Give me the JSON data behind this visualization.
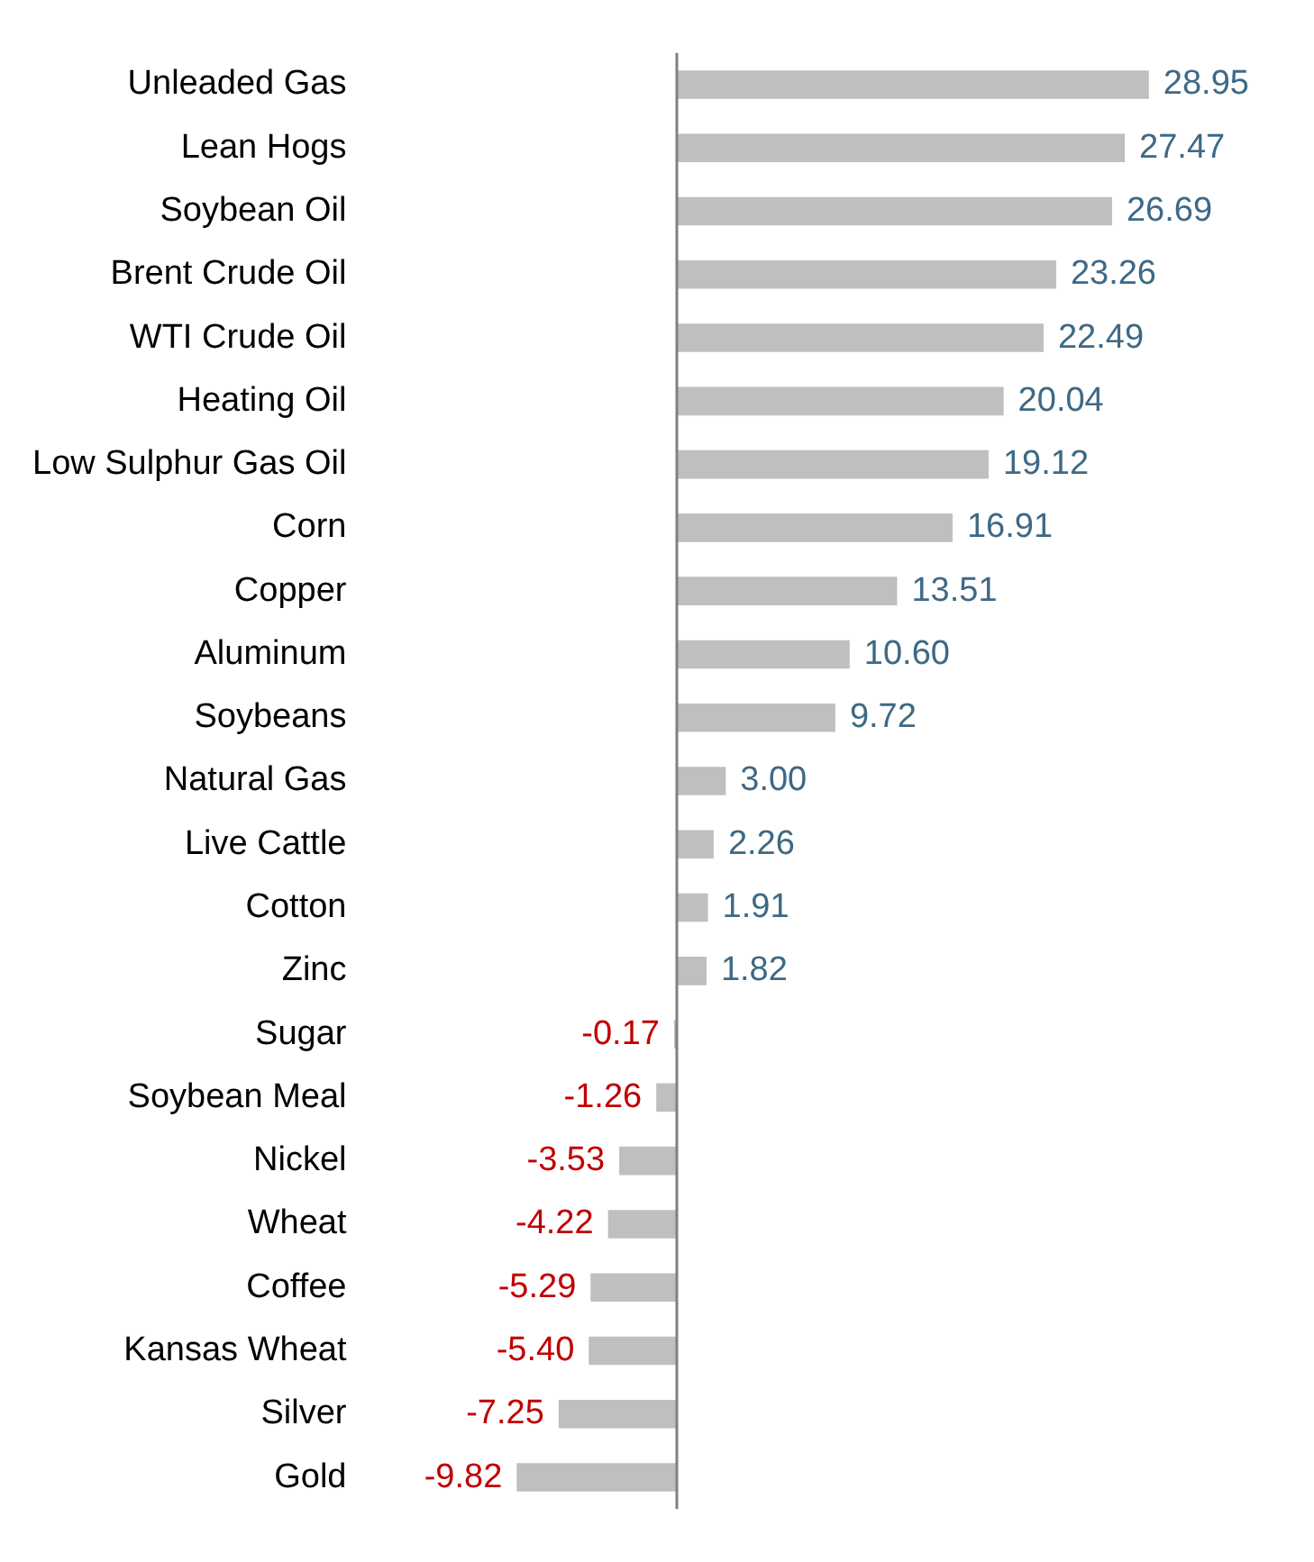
{
  "chart_data": {
    "type": "bar",
    "orientation": "horizontal",
    "categories": [
      "Unleaded Gas",
      "Lean Hogs",
      "Soybean Oil",
      "Brent Crude Oil",
      "WTI Crude Oil",
      "Heating Oil",
      "Low Sulphur Gas Oil",
      "Corn",
      "Copper",
      "Aluminum",
      "Soybeans",
      "Natural Gas",
      "Live Cattle",
      "Cotton",
      "Zinc",
      "Sugar",
      "Soybean Meal",
      "Nickel",
      "Wheat",
      "Coffee",
      "Kansas Wheat",
      "Silver",
      "Gold"
    ],
    "values": [
      28.95,
      27.47,
      26.69,
      23.26,
      22.49,
      20.04,
      19.12,
      16.91,
      13.51,
      10.6,
      9.72,
      3.0,
      2.26,
      1.91,
      1.82,
      -0.17,
      -1.26,
      -3.53,
      -4.22,
      -5.29,
      -5.4,
      -7.25,
      -9.82
    ],
    "value_labels": [
      "28.95",
      "27.47",
      "26.69",
      "23.26",
      "22.49",
      "20.04",
      "19.12",
      "16.91",
      "13.51",
      "10.60",
      "9.72",
      "3.00",
      "2.26",
      "1.91",
      "1.82",
      "-0.17",
      "-1.26",
      "-3.53",
      "-4.22",
      "-5.29",
      "-5.40",
      "-7.25",
      "-9.82"
    ],
    "color": "#bfbfbf"
  }
}
